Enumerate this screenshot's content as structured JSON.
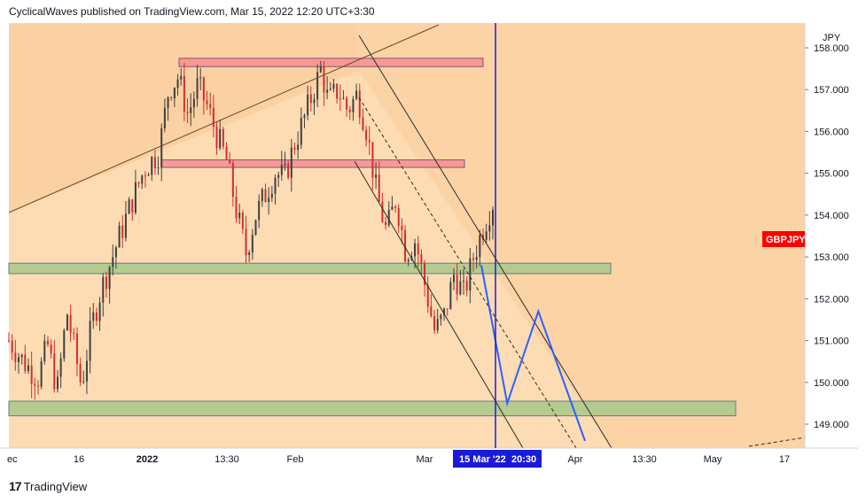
{
  "header": {
    "text": "CyclicalWaves published on TradingView.com, Mar 15, 2022 12:20 UTC+3:30"
  },
  "footer": {
    "brand": "TradingView",
    "logo": "tradingview-logo-icon"
  },
  "chart_data": {
    "type": "candlestick",
    "symbol": "GBPJPY",
    "currency": "JPY",
    "current_price_label": "GBPJPY",
    "y_axis": {
      "ticks": [
        "158.000",
        "157.000",
        "156.000",
        "155.000",
        "154.000",
        "153.000",
        "152.000",
        "151.000",
        "150.000",
        "149.000"
      ],
      "range": [
        148.5,
        158.3
      ]
    },
    "x_axis": {
      "ticks": [
        "ec",
        "16",
        "2022",
        "13:30",
        "Feb",
        "Mar",
        "Apr",
        "13:30",
        "May",
        "17"
      ],
      "cursor_label": "15 Mar '22",
      "cursor_time": "20:30"
    },
    "colors": {
      "background": "#fddcb4",
      "up": "#3f3f3f",
      "down": "#cf2f2f",
      "resistance_zone": "#f49090",
      "support_zone": "#a9c98a",
      "projection": "#2962ff",
      "cursor_line": "#1a1adb",
      "price_label": "#ff0000"
    },
    "price_path": [
      {
        "t": 0.0,
        "p": 151.0
      },
      {
        "t": 0.03,
        "p": 150.5
      },
      {
        "t": 0.06,
        "p": 150.1
      },
      {
        "t": 0.08,
        "p": 150.9
      },
      {
        "t": 0.1,
        "p": 149.8
      },
      {
        "t": 0.12,
        "p": 151.7
      },
      {
        "t": 0.15,
        "p": 149.9
      },
      {
        "t": 0.17,
        "p": 151.3
      },
      {
        "t": 0.19,
        "p": 152.2
      },
      {
        "t": 0.22,
        "p": 153.2
      },
      {
        "t": 0.25,
        "p": 154.2
      },
      {
        "t": 0.28,
        "p": 155.1
      },
      {
        "t": 0.31,
        "p": 155.5
      },
      {
        "t": 0.33,
        "p": 157.0
      },
      {
        "t": 0.35,
        "p": 157.3
      },
      {
        "t": 0.37,
        "p": 156.4
      },
      {
        "t": 0.39,
        "p": 157.1
      },
      {
        "t": 0.41,
        "p": 156.6
      },
      {
        "t": 0.43,
        "p": 155.9
      },
      {
        "t": 0.45,
        "p": 155.3
      },
      {
        "t": 0.47,
        "p": 154.1
      },
      {
        "t": 0.49,
        "p": 153.1
      },
      {
        "t": 0.51,
        "p": 154.0
      },
      {
        "t": 0.53,
        "p": 154.5
      },
      {
        "t": 0.55,
        "p": 155.0
      },
      {
        "t": 0.57,
        "p": 154.9
      },
      {
        "t": 0.59,
        "p": 155.7
      },
      {
        "t": 0.61,
        "p": 156.3
      },
      {
        "t": 0.63,
        "p": 157.0
      },
      {
        "t": 0.645,
        "p": 157.5
      },
      {
        "t": 0.66,
        "p": 156.7
      },
      {
        "t": 0.68,
        "p": 157.0
      },
      {
        "t": 0.7,
        "p": 156.5
      },
      {
        "t": 0.72,
        "p": 156.9
      },
      {
        "t": 0.74,
        "p": 156.0
      },
      {
        "t": 0.76,
        "p": 154.5
      },
      {
        "t": 0.78,
        "p": 153.6
      },
      {
        "t": 0.8,
        "p": 154.4
      },
      {
        "t": 0.82,
        "p": 153.1
      },
      {
        "t": 0.84,
        "p": 153.4
      },
      {
        "t": 0.86,
        "p": 152.3
      },
      {
        "t": 0.88,
        "p": 151.2
      },
      {
        "t": 0.9,
        "p": 151.6
      },
      {
        "t": 0.92,
        "p": 152.6
      },
      {
        "t": 0.94,
        "p": 152.1
      },
      {
        "t": 0.96,
        "p": 153.0
      },
      {
        "t": 0.98,
        "p": 153.7
      },
      {
        "t": 1.0,
        "p": 154.3
      }
    ],
    "projection_path": [
      {
        "x": 0.0,
        "p": 152.8
      },
      {
        "x": 0.25,
        "p": 149.5
      },
      {
        "x": 0.55,
        "p": 151.7
      },
      {
        "x": 1.0,
        "p": 148.6
      }
    ],
    "zones": [
      {
        "name": "resistance-top",
        "kind": "resistance",
        "top": 157.75,
        "bottom": 157.55
      },
      {
        "name": "resistance-mid",
        "kind": "resistance",
        "top": 155.32,
        "bottom": 155.14
      },
      {
        "name": "support-mid",
        "kind": "support",
        "top": 152.85,
        "bottom": 152.6
      },
      {
        "name": "support-low",
        "kind": "support",
        "top": 149.55,
        "bottom": 149.2
      }
    ]
  }
}
